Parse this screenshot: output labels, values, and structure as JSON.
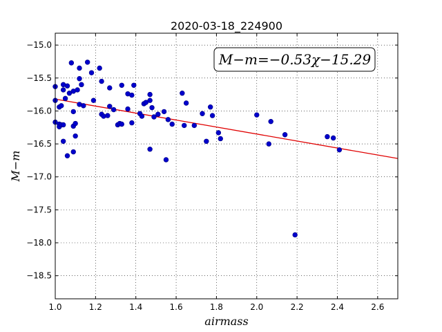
{
  "chart_data": {
    "type": "scatter",
    "title": "2020-03-18_224900",
    "xlabel": "airmass",
    "ylabel": "M−m",
    "xlim": [
      1.0,
      2.7
    ],
    "ylim": [
      -18.85,
      -14.82
    ],
    "y_inverted": true,
    "grid": true,
    "x_ticks": [
      1.0,
      1.2,
      1.4,
      1.6,
      1.8,
      2.0,
      2.2,
      2.4,
      2.6
    ],
    "x_tick_labels": [
      "1.0",
      "1.2",
      "1.4",
      "1.6",
      "1.8",
      "2.0",
      "2.2",
      "2.4",
      "2.6"
    ],
    "y_ticks": [
      -15.0,
      -15.5,
      -16.0,
      -16.5,
      -17.0,
      -17.5,
      -18.0,
      -18.5
    ],
    "y_tick_labels": [
      "−15.0",
      "−15.5",
      "−16.0",
      "−16.5",
      "−17.0",
      "−17.5",
      "−18.0",
      "−18.5"
    ],
    "annotation": "M−m=−0.53χ−15.29",
    "fit": {
      "slope": -0.53,
      "intercept": -15.29,
      "color": "#e00000"
    },
    "point_color": "#0000cc",
    "points": [
      [
        1.0,
        -15.63
      ],
      [
        1.0,
        -15.84
      ],
      [
        1.0,
        -16.17
      ],
      [
        1.02,
        -16.2
      ],
      [
        1.02,
        -16.24
      ],
      [
        1.02,
        -15.94
      ],
      [
        1.03,
        -15.92
      ],
      [
        1.03,
        -16.21
      ],
      [
        1.04,
        -15.68
      ],
      [
        1.04,
        -15.6
      ],
      [
        1.04,
        -16.21
      ],
      [
        1.04,
        -16.46
      ],
      [
        1.05,
        -15.81
      ],
      [
        1.06,
        -15.62
      ],
      [
        1.06,
        -16.68
      ],
      [
        1.07,
        -15.73
      ],
      [
        1.08,
        -15.27
      ],
      [
        1.09,
        -15.7
      ],
      [
        1.09,
        -16.01
      ],
      [
        1.09,
        -16.23
      ],
      [
        1.09,
        -16.62
      ],
      [
        1.1,
        -16.19
      ],
      [
        1.1,
        -16.38
      ],
      [
        1.11,
        -15.68
      ],
      [
        1.12,
        -15.51
      ],
      [
        1.12,
        -15.35
      ],
      [
        1.12,
        -15.9
      ],
      [
        1.13,
        -15.6
      ],
      [
        1.14,
        -15.92
      ],
      [
        1.16,
        -15.26
      ],
      [
        1.18,
        -15.42
      ],
      [
        1.19,
        -15.84
      ],
      [
        1.22,
        -15.35
      ],
      [
        1.23,
        -15.55
      ],
      [
        1.23,
        -16.05
      ],
      [
        1.24,
        -16.08
      ],
      [
        1.27,
        -15.65
      ],
      [
        1.27,
        -15.93
      ],
      [
        1.26,
        -16.07
      ],
      [
        1.29,
        -15.98
      ],
      [
        1.31,
        -16.21
      ],
      [
        1.32,
        -16.19
      ],
      [
        1.33,
        -15.61
      ],
      [
        1.33,
        -16.2
      ],
      [
        1.36,
        -15.74
      ],
      [
        1.36,
        -15.97
      ],
      [
        1.38,
        -16.18
      ],
      [
        1.38,
        -15.76
      ],
      [
        1.39,
        -15.61
      ],
      [
        1.42,
        -16.04
      ],
      [
        1.43,
        -16.08
      ],
      [
        1.44,
        -15.89
      ],
      [
        1.45,
        -15.87
      ],
      [
        1.47,
        -15.84
      ],
      [
        1.47,
        -16.58
      ],
      [
        1.47,
        -15.75
      ],
      [
        1.48,
        -15.95
      ],
      [
        1.49,
        -16.09
      ],
      [
        1.51,
        -16.05
      ],
      [
        1.54,
        -16.01
      ],
      [
        1.55,
        -16.74
      ],
      [
        1.56,
        -16.13
      ],
      [
        1.58,
        -16.2
      ],
      [
        1.63,
        -15.73
      ],
      [
        1.64,
        -16.22
      ],
      [
        1.65,
        -15.88
      ],
      [
        1.69,
        -16.22
      ],
      [
        1.73,
        -16.04
      ],
      [
        1.75,
        -16.46
      ],
      [
        1.77,
        -15.94
      ],
      [
        1.78,
        -16.07
      ],
      [
        1.81,
        -16.33
      ],
      [
        1.82,
        -16.42
      ],
      [
        2.0,
        -16.06
      ],
      [
        2.06,
        -16.5
      ],
      [
        2.07,
        -16.16
      ],
      [
        2.14,
        -16.36
      ],
      [
        2.19,
        -17.88
      ],
      [
        2.35,
        -16.39
      ],
      [
        2.38,
        -16.41
      ],
      [
        2.41,
        -16.59
      ]
    ]
  }
}
